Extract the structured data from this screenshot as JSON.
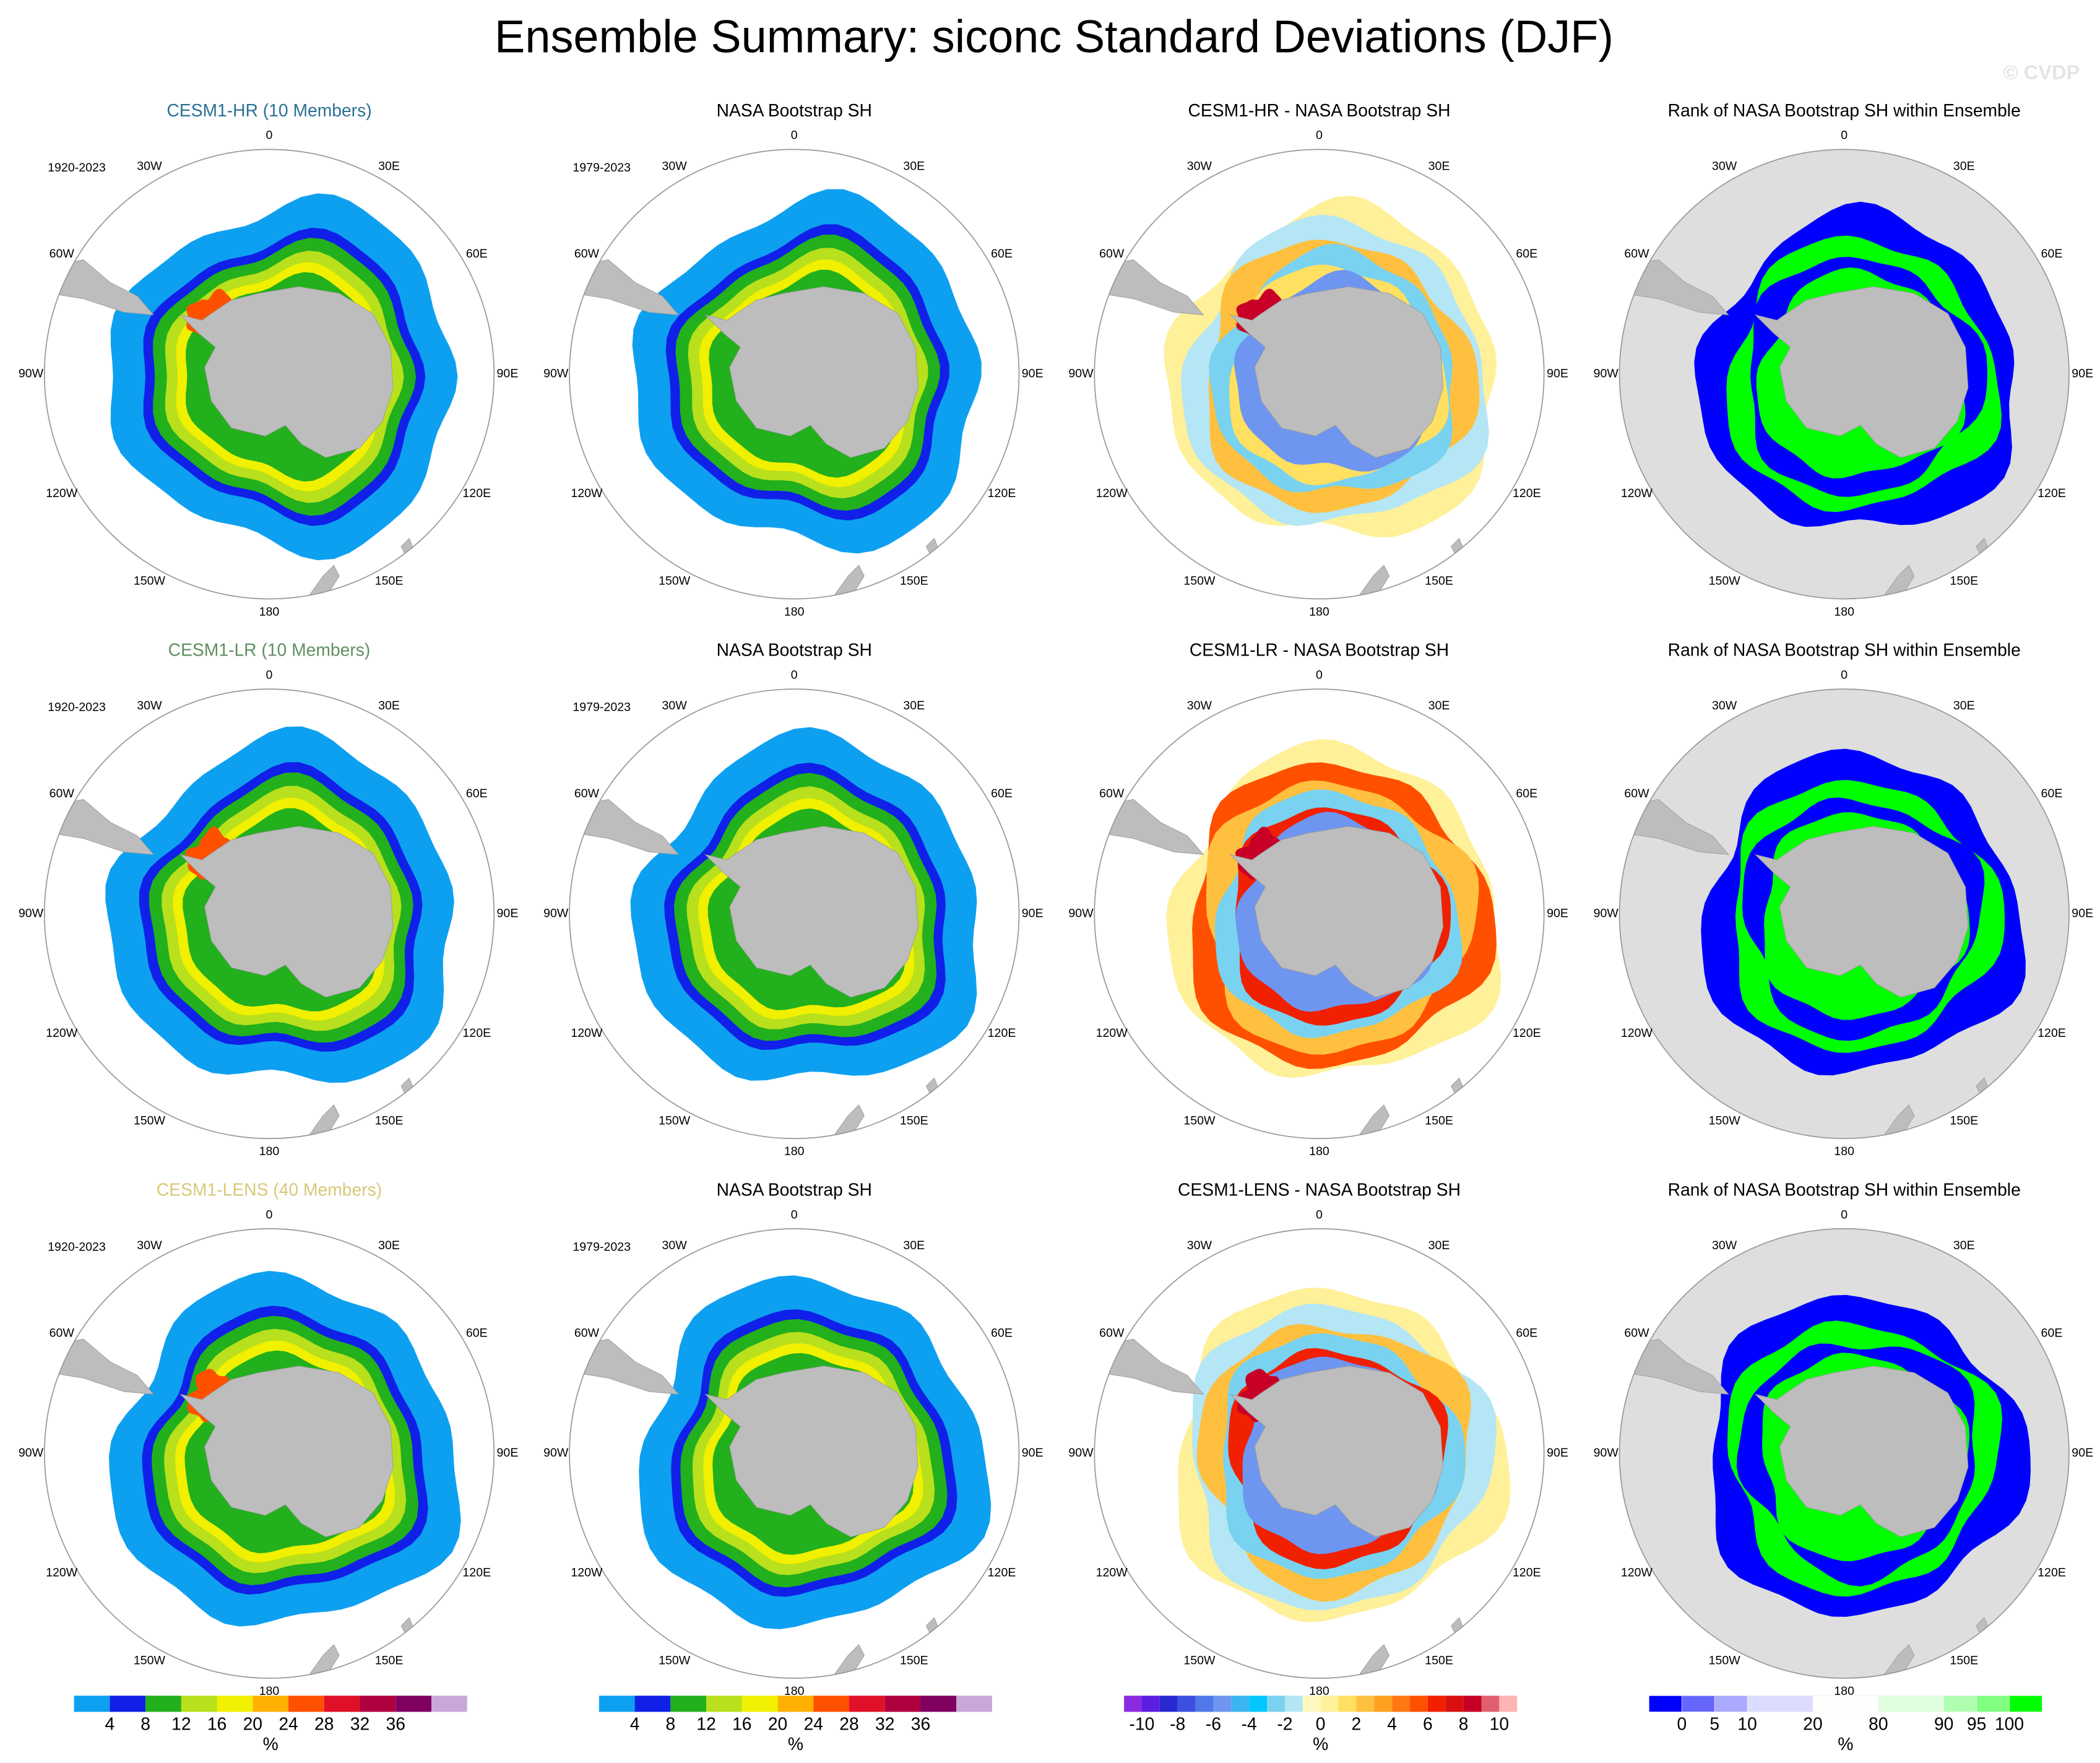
{
  "title": "Ensemble Summary: siconc Standard Deviations (DJF)",
  "watermark": "© CVDP",
  "longitude_labels": [
    "0",
    "30E",
    "60E",
    "90E",
    "120E",
    "150E",
    "180",
    "150W",
    "120W",
    "90W",
    "60W",
    "30W"
  ],
  "rows": [
    {
      "panels": [
        {
          "title": "CESM1-HR (10 Members)",
          "title_color": "#2b7194",
          "period": "1920-2023"
        },
        {
          "title": "NASA Bootstrap SH",
          "period": "1979-2023"
        },
        {
          "title": "CESM1-HR - NASA Bootstrap SH"
        },
        {
          "title": "Rank of NASA Bootstrap SH within Ensemble"
        }
      ]
    },
    {
      "panels": [
        {
          "title": "CESM1-LR (10 Members)",
          "title_color": "#5f8f5f",
          "period": "1920-2023"
        },
        {
          "title": "NASA Bootstrap SH",
          "period": "1979-2023"
        },
        {
          "title": "CESM1-LR - NASA Bootstrap SH"
        },
        {
          "title": "Rank of NASA Bootstrap SH within Ensemble"
        }
      ]
    },
    {
      "panels": [
        {
          "title": "CESM1-LENS (40 Members)",
          "title_color": "#d8c87a",
          "period": "1920-2023"
        },
        {
          "title": "NASA Bootstrap SH",
          "period": "1979-2023"
        },
        {
          "title": "CESM1-LENS - NASA Bootstrap SH"
        },
        {
          "title": "Rank of NASA Bootstrap SH within Ensemble"
        }
      ]
    }
  ],
  "colorbars": [
    {
      "colors": [
        "#0ea0f0",
        "#1020e8",
        "#22b01c",
        "#b8e01c",
        "#f0f000",
        "#ffb000",
        "#ff5000",
        "#e01028",
        "#b00040",
        "#800060",
        "#c8a8d8"
      ],
      "ticks": [
        4,
        8,
        12,
        16,
        20,
        24,
        28,
        32,
        36
      ],
      "unit": "%"
    },
    {
      "colors": [
        "#0ea0f0",
        "#1020e8",
        "#22b01c",
        "#b8e01c",
        "#f0f000",
        "#ffb000",
        "#ff5000",
        "#e01028",
        "#b00040",
        "#800060",
        "#c8a8d8"
      ],
      "ticks": [
        4,
        8,
        12,
        16,
        20,
        24,
        28,
        32,
        36
      ],
      "unit": "%"
    },
    {
      "colors": [
        "#8a2be2",
        "#5a1ee0",
        "#2828d0",
        "#3c50e0",
        "#5078e8",
        "#6e96f0",
        "#3cb4f0",
        "#00c8ff",
        "#78d2f0",
        "#b4e6f5",
        "#fff8c0",
        "#fff09a",
        "#ffe060",
        "#ffc040",
        "#ffa020",
        "#ff7810",
        "#ff5000",
        "#f02000",
        "#d81010",
        "#c80028",
        "#e06070",
        "#ffb4b4"
      ],
      "ticks": [
        -10,
        -8,
        -6,
        -4,
        -2,
        0,
        2,
        4,
        6,
        8,
        10
      ],
      "unit": "%"
    },
    {
      "colors": [
        "#0000ff",
        "#6666ff",
        "#aaaaff",
        "#dcdcff",
        "#ffffff",
        "#e0ffe0",
        "#b0ffb0",
        "#80ff80",
        "#00ff00"
      ],
      "ticks": [
        0,
        5,
        10,
        20,
        80,
        90,
        95,
        100
      ],
      "unit": "%"
    }
  ]
}
